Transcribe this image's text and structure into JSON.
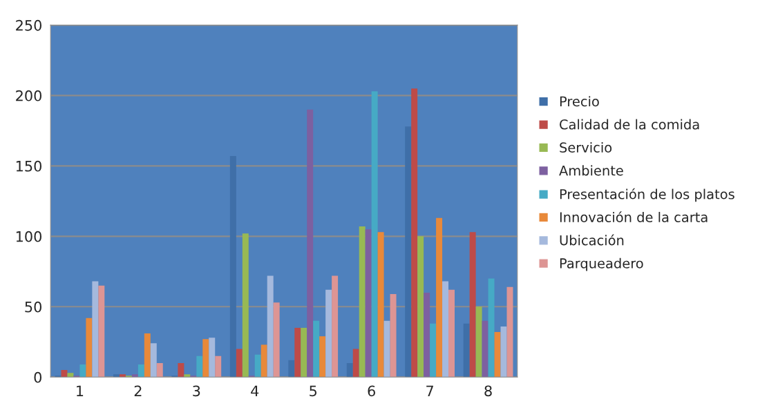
{
  "chart_data": {
    "type": "bar",
    "categories": [
      "1",
      "2",
      "3",
      "4",
      "5",
      "6",
      "7",
      "8"
    ],
    "series": [
      {
        "name": "Precio",
        "color": "#3f6fa8",
        "values": [
          1,
          2,
          1,
          157,
          12,
          10,
          178,
          38
        ]
      },
      {
        "name": "Calidad de la comida",
        "color": "#be4b48",
        "values": [
          5,
          2,
          10,
          20,
          35,
          20,
          205,
          103
        ]
      },
      {
        "name": "Servicio",
        "color": "#98b954",
        "values": [
          3,
          1,
          2,
          102,
          35,
          107,
          100,
          50
        ]
      },
      {
        "name": "Ambiente",
        "color": "#7d60a0",
        "values": [
          1,
          2,
          1,
          1,
          190,
          105,
          60,
          40
        ]
      },
      {
        "name": "Presentación de los platos",
        "color": "#46aac5",
        "values": [
          9,
          9,
          15,
          16,
          40,
          203,
          38,
          70
        ]
      },
      {
        "name": "Innovación de la carta",
        "color": "#e8893a",
        "values": [
          42,
          31,
          27,
          23,
          29,
          103,
          113,
          32
        ]
      },
      {
        "name": "Ubicación",
        "color": "#a5b9dd",
        "values": [
          68,
          24,
          28,
          72,
          62,
          40,
          68,
          36
        ]
      },
      {
        "name": "Parqueadero",
        "color": "#dd9594",
        "values": [
          65,
          10,
          15,
          53,
          72,
          59,
          62,
          64
        ]
      }
    ],
    "ylim": [
      0,
      250
    ],
    "yticks": [
      0,
      50,
      100,
      150,
      200,
      250
    ],
    "grid": "y",
    "legend": "right"
  }
}
